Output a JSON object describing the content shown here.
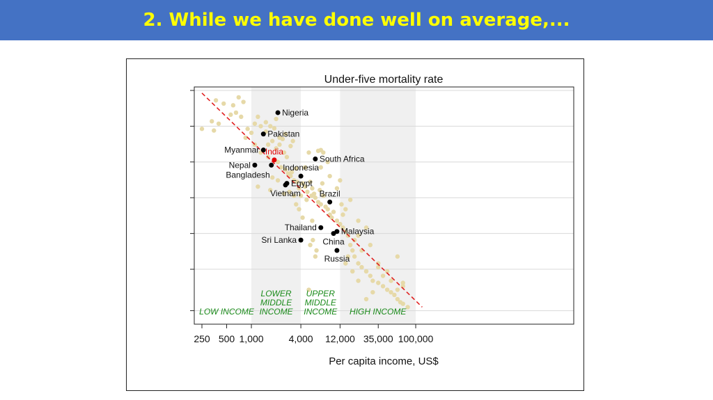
{
  "header": {
    "title": "2.  While we have done well on average,..."
  },
  "chart_data": {
    "type": "scatter",
    "title": "Under-five mortality rate",
    "xlabel": "Per capita income, US$",
    "ylabel": "",
    "x_scale": "log",
    "x_ticks": [
      {
        "value": 250,
        "label": "250"
      },
      {
        "value": 500,
        "label": "500"
      },
      {
        "value": 1000,
        "label": "1,000"
      },
      {
        "value": 4000,
        "label": "4,000"
      },
      {
        "value": 12000,
        "label": "12,000"
      },
      {
        "value": 35000,
        "label": "35,000"
      },
      {
        "value": 100000,
        "label": "100,000"
      }
    ],
    "y_scale": "log",
    "y_ticks_labeled": false,
    "grid": true,
    "income_bands": [
      {
        "label": [
          "LOW INCOME"
        ],
        "from": 200,
        "to": 1000,
        "shaded": false
      },
      {
        "label": [
          "LOWER",
          "MIDDLE",
          "INCOME"
        ],
        "from": 1000,
        "to": 4000,
        "shaded": true
      },
      {
        "label": [
          "UPPER",
          "MIDDLE",
          "INCOME"
        ],
        "from": 4000,
        "to": 12000,
        "shaded": false
      },
      {
        "label": [
          "HIGH INCOME"
        ],
        "from": 12000,
        "to": 100000,
        "shaded": true
      }
    ],
    "trend_line": {
      "style": "dashed",
      "color": "#e02020",
      "from": {
        "x": 250,
        "y": 190
      },
      "to": {
        "x": 120000,
        "y": 3
      }
    },
    "highlighted_points": [
      {
        "name": "Nigeria",
        "x": 2100,
        "y": 130,
        "label_side": "right"
      },
      {
        "name": "Pakistan",
        "x": 1400,
        "y": 86,
        "label_side": "right"
      },
      {
        "name": "Myanmar",
        "x": 1400,
        "y": 63,
        "label_side": "left"
      },
      {
        "name": "India",
        "x": 1900,
        "y": 52,
        "label_side": "above",
        "color": "#e00000"
      },
      {
        "name": "South Africa",
        "x": 6000,
        "y": 53,
        "label_side": "right"
      },
      {
        "name": "Nepal",
        "x": 1100,
        "y": 47,
        "label_side": "left"
      },
      {
        "name": "Bangladesh",
        "x": 1750,
        "y": 47,
        "label_side": "below-left"
      },
      {
        "name": "Indonesia",
        "x": 4000,
        "y": 38,
        "label_side": "above"
      },
      {
        "name": "Egypt",
        "x": 2700,
        "y": 33,
        "label_side": "right"
      },
      {
        "name": "Vietnam",
        "x": 2600,
        "y": 32,
        "label_side": "below"
      },
      {
        "name": "Brazil",
        "x": 9000,
        "y": 23,
        "label_side": "above"
      },
      {
        "name": "Thailand",
        "x": 7000,
        "y": 14,
        "label_side": "left"
      },
      {
        "name": "Malaysia",
        "x": 11000,
        "y": 13,
        "label_side": "right"
      },
      {
        "name": "China",
        "x": 10000,
        "y": 12.5,
        "label_side": "below"
      },
      {
        "name": "Sri Lanka",
        "x": 4000,
        "y": 11,
        "label_side": "left"
      },
      {
        "name": "Russia",
        "x": 11000,
        "y": 9,
        "label_side": "below"
      }
    ],
    "other_points": [
      [
        250,
        95
      ],
      [
        330,
        110
      ],
      [
        370,
        165
      ],
      [
        460,
        155
      ],
      [
        600,
        150
      ],
      [
        700,
        175
      ],
      [
        800,
        160
      ],
      [
        350,
        92
      ],
      [
        400,
        105
      ],
      [
        560,
        125
      ],
      [
        650,
        130
      ],
      [
        750,
        120
      ],
      [
        850,
        80
      ],
      [
        900,
        95
      ],
      [
        1000,
        88
      ],
      [
        1100,
        105
      ],
      [
        1200,
        120
      ],
      [
        1300,
        100
      ],
      [
        1500,
        90
      ],
      [
        1600,
        70
      ],
      [
        1800,
        75
      ],
      [
        2000,
        65
      ],
      [
        2200,
        70
      ],
      [
        2500,
        60
      ],
      [
        2700,
        55
      ],
      [
        3000,
        68
      ],
      [
        3200,
        75
      ],
      [
        2400,
        78
      ],
      [
        1100,
        70
      ],
      [
        1300,
        60
      ],
      [
        1600,
        55
      ],
      [
        2100,
        50
      ],
      [
        2300,
        45
      ],
      [
        2600,
        43
      ],
      [
        2800,
        40
      ],
      [
        3000,
        38
      ],
      [
        3300,
        35
      ],
      [
        3600,
        34
      ],
      [
        3800,
        30
      ],
      [
        4200,
        33
      ],
      [
        4500,
        31
      ],
      [
        4800,
        28
      ],
      [
        5200,
        34
      ],
      [
        5500,
        30
      ],
      [
        5800,
        27
      ],
      [
        6000,
        25
      ],
      [
        6500,
        23
      ],
      [
        7000,
        22
      ],
      [
        7500,
        26
      ],
      [
        8000,
        21
      ],
      [
        8500,
        20
      ],
      [
        9000,
        18
      ],
      [
        9500,
        17
      ],
      [
        10000,
        19
      ],
      [
        11000,
        16
      ],
      [
        12000,
        15
      ],
      [
        13000,
        14
      ],
      [
        14000,
        13
      ],
      [
        15000,
        12
      ],
      [
        16000,
        10
      ],
      [
        17000,
        9
      ],
      [
        18000,
        8
      ],
      [
        20000,
        7
      ],
      [
        22000,
        6.5
      ],
      [
        25000,
        6
      ],
      [
        28000,
        5.5
      ],
      [
        30000,
        5
      ],
      [
        35000,
        4.8
      ],
      [
        40000,
        4.5
      ],
      [
        45000,
        4.2
      ],
      [
        50000,
        4
      ],
      [
        55000,
        3.8
      ],
      [
        60000,
        3.5
      ],
      [
        65000,
        3.3
      ],
      [
        70000,
        3.2
      ],
      [
        80000,
        3.0
      ],
      [
        40000,
        5.5
      ],
      [
        45000,
        6
      ],
      [
        50000,
        5
      ],
      [
        60000,
        4.2
      ],
      [
        70000,
        4.5
      ],
      [
        35000,
        6.5
      ],
      [
        30000,
        4
      ],
      [
        25000,
        3.5
      ],
      [
        20000,
        5
      ],
      [
        15000,
        8
      ],
      [
        18000,
        11
      ],
      [
        20000,
        12
      ],
      [
        25000,
        14
      ],
      [
        28000,
        10
      ],
      [
        22000,
        9
      ],
      [
        17000,
        6
      ],
      [
        14000,
        7
      ],
      [
        13000,
        18
      ],
      [
        12500,
        22
      ],
      [
        16000,
        24
      ],
      [
        14000,
        20
      ],
      [
        11000,
        30
      ],
      [
        12000,
        35
      ],
      [
        9000,
        38
      ],
      [
        8500,
        50
      ],
      [
        7500,
        60
      ],
      [
        6500,
        62
      ],
      [
        5000,
        60
      ],
      [
        4500,
        45
      ],
      [
        3500,
        22
      ],
      [
        3800,
        20
      ],
      [
        4200,
        17
      ],
      [
        5500,
        16
      ],
      [
        6000,
        8
      ],
      [
        6200,
        9
      ],
      [
        5200,
        10
      ],
      [
        5600,
        11
      ],
      [
        3300,
        26
      ],
      [
        2900,
        28
      ],
      [
        2500,
        27
      ],
      [
        1200,
        31
      ],
      [
        1700,
        29
      ],
      [
        2100,
        35
      ],
      [
        1800,
        37
      ],
      [
        4000,
        26
      ],
      [
        4700,
        24
      ],
      [
        5400,
        26
      ],
      [
        6800,
        29
      ],
      [
        7300,
        33
      ],
      [
        3100,
        41
      ],
      [
        3500,
        44
      ],
      [
        7000,
        45
      ],
      [
        2000,
        115
      ],
      [
        1700,
        100
      ],
      [
        1500,
        108
      ],
      [
        1900,
        96
      ],
      [
        2600,
        86
      ],
      [
        2200,
        80
      ],
      [
        7000,
        63
      ],
      [
        5000,
        4.2
      ],
      [
        60000,
        8
      ],
      [
        20000,
        16
      ],
      [
        35000,
        7
      ],
      [
        70000,
        4.8
      ]
    ]
  }
}
